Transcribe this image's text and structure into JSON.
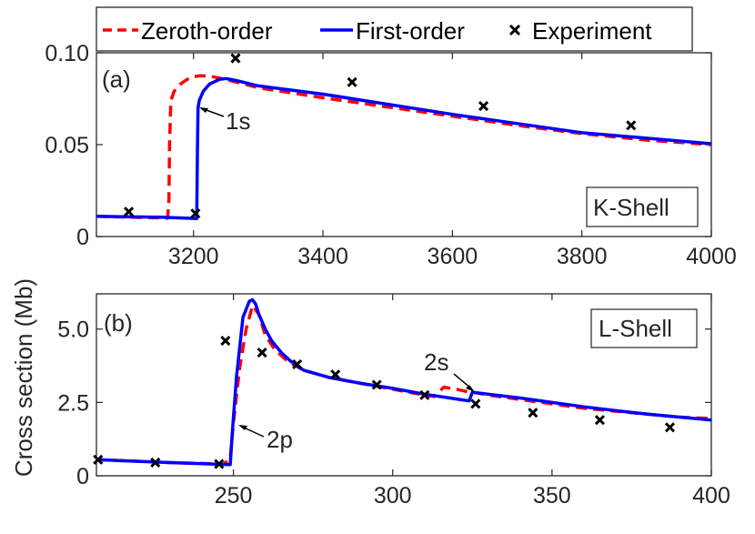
{
  "figure": {
    "ylabel": "Cross section (Mb)"
  },
  "legend": {
    "entries": [
      {
        "label": "Zeroth-order",
        "color": "#ff0000",
        "style": "dashed"
      },
      {
        "label": "First-order",
        "color": "#0000ff",
        "style": "solid"
      },
      {
        "label": "Experiment",
        "color": "#000000",
        "style": "x-marker"
      }
    ]
  },
  "chart_data": [
    {
      "type": "line",
      "panel_label": "(a)",
      "shell_label": "K-Shell",
      "xlim": [
        3050,
        4000
      ],
      "ylim": [
        0,
        0.1
      ],
      "xticks": [
        3200,
        3400,
        3600,
        3800,
        4000
      ],
      "yticks": [
        0,
        0.05,
        0.1
      ],
      "ytick_labels": [
        "0",
        "0.05",
        "0.10"
      ],
      "annotations": [
        {
          "text": "1s",
          "x": 3207,
          "y": 0.07
        }
      ],
      "series": [
        {
          "name": "Zeroth-order",
          "color": "#ff0000",
          "style": "dashed",
          "x": [
            3050,
            3160,
            3162,
            3163,
            3165,
            3170,
            3180,
            3190,
            3200,
            3210,
            3225,
            3250,
            3300,
            3400,
            3500,
            3600,
            3700,
            3800,
            3900,
            4000
          ],
          "y": [
            0.011,
            0.01,
            0.02,
            0.05,
            0.074,
            0.079,
            0.083,
            0.0855,
            0.087,
            0.0875,
            0.0873,
            0.0855,
            0.081,
            0.0755,
            0.0705,
            0.0655,
            0.0605,
            0.056,
            0.0525,
            0.05
          ]
        },
        {
          "name": "First-order",
          "color": "#0000ff",
          "style": "solid",
          "x": [
            3050,
            3150,
            3205,
            3206,
            3207,
            3209,
            3215,
            3225,
            3240,
            3250,
            3265,
            3300,
            3400,
            3500,
            3600,
            3700,
            3800,
            3900,
            4000
          ],
          "y": [
            0.011,
            0.0105,
            0.0098,
            0.045,
            0.07,
            0.074,
            0.079,
            0.083,
            0.0855,
            0.086,
            0.085,
            0.082,
            0.0775,
            0.072,
            0.0665,
            0.0615,
            0.0565,
            0.0535,
            0.0505
          ]
        },
        {
          "name": "Experiment",
          "color": "#000000",
          "style": "x-marker",
          "x": [
            3100,
            3203,
            3265,
            3445,
            3648,
            3876
          ],
          "y": [
            0.0135,
            0.0125,
            0.097,
            0.084,
            0.071,
            0.0605
          ]
        }
      ]
    },
    {
      "type": "line",
      "panel_label": "(b)",
      "shell_label": "L-Shell",
      "xlim": [
        207,
        400
      ],
      "ylim": [
        0,
        6.2
      ],
      "xticks": [
        250,
        300,
        350,
        400
      ],
      "yticks": [
        0,
        2.5,
        5
      ],
      "ytick_labels": [
        "0",
        "2.5",
        "5.0"
      ],
      "annotations": [
        {
          "text": "2p",
          "x": 250,
          "y": 1.7
        },
        {
          "text": "2s",
          "x": 325,
          "y": 2.9
        }
      ],
      "series": [
        {
          "name": "Zeroth-order",
          "color": "#ff0000",
          "style": "dashed",
          "x": [
            207,
            230,
            247,
            249,
            250,
            252,
            254,
            256,
            258,
            260,
            263,
            267,
            272,
            280,
            290,
            300,
            310,
            313,
            316,
            320,
            324,
            325,
            330,
            340,
            350,
            360,
            370,
            380,
            390,
            400
          ],
          "y": [
            0.55,
            0.45,
            0.4,
            0.6,
            1.8,
            3.7,
            5.0,
            5.8,
            5.5,
            4.8,
            4.3,
            3.9,
            3.6,
            3.35,
            3.15,
            2.95,
            2.75,
            2.7,
            3.02,
            2.95,
            2.85,
            2.85,
            2.75,
            2.6,
            2.45,
            2.3,
            2.2,
            2.1,
            2.0,
            1.95
          ]
        },
        {
          "name": "First-order",
          "color": "#0000ff",
          "style": "solid",
          "x": [
            207,
            230,
            249,
            249.8,
            251,
            253,
            255,
            256,
            257,
            258,
            260,
            262,
            265,
            268,
            272,
            280,
            290,
            300,
            310,
            324,
            325,
            330,
            340,
            350,
            360,
            370,
            380,
            390,
            400
          ],
          "y": [
            0.55,
            0.45,
            0.38,
            1.7,
            3.4,
            5.4,
            5.95,
            6.0,
            5.85,
            5.5,
            5.0,
            4.6,
            4.2,
            3.9,
            3.6,
            3.35,
            3.15,
            2.98,
            2.78,
            2.55,
            2.85,
            2.78,
            2.65,
            2.5,
            2.35,
            2.22,
            2.1,
            2.0,
            1.9
          ]
        },
        {
          "name": "Experiment",
          "color": "#000000",
          "style": "x-marker",
          "x": [
            207.5,
            225.5,
            245.5,
            247.5,
            259,
            270,
            282,
            295,
            310,
            326,
            344,
            365,
            387
          ],
          "y": [
            0.55,
            0.45,
            0.4,
            4.6,
            4.2,
            3.8,
            3.45,
            3.1,
            2.75,
            2.45,
            2.15,
            1.9,
            1.65
          ]
        }
      ]
    }
  ]
}
